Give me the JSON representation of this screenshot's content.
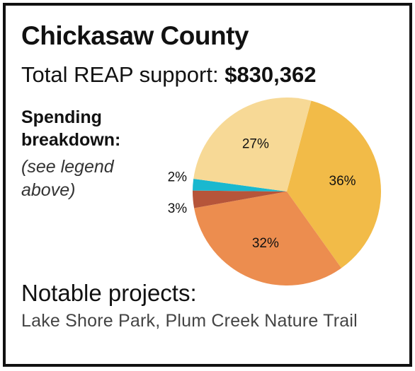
{
  "header": {
    "title": "Chickasaw County",
    "support_label": "Total REAP support: ",
    "support_amount": "$830,362"
  },
  "breakdown": {
    "label": "Spending breakdown:",
    "note": "(see legend above)"
  },
  "notable": {
    "heading": "Notable projects:",
    "projects": "Lake Shore Park, Plum Creek Nature Trail"
  },
  "chart_data": {
    "type": "pie",
    "values": [
      36,
      32,
      3,
      2,
      27
    ],
    "labels": [
      "36%",
      "32%",
      "3%",
      "2%",
      "27%"
    ],
    "colors": [
      "#f2bb48",
      "#ec8d4f",
      "#b6553a",
      "#1ab8cf",
      "#f7d996"
    ],
    "legend": "none"
  }
}
